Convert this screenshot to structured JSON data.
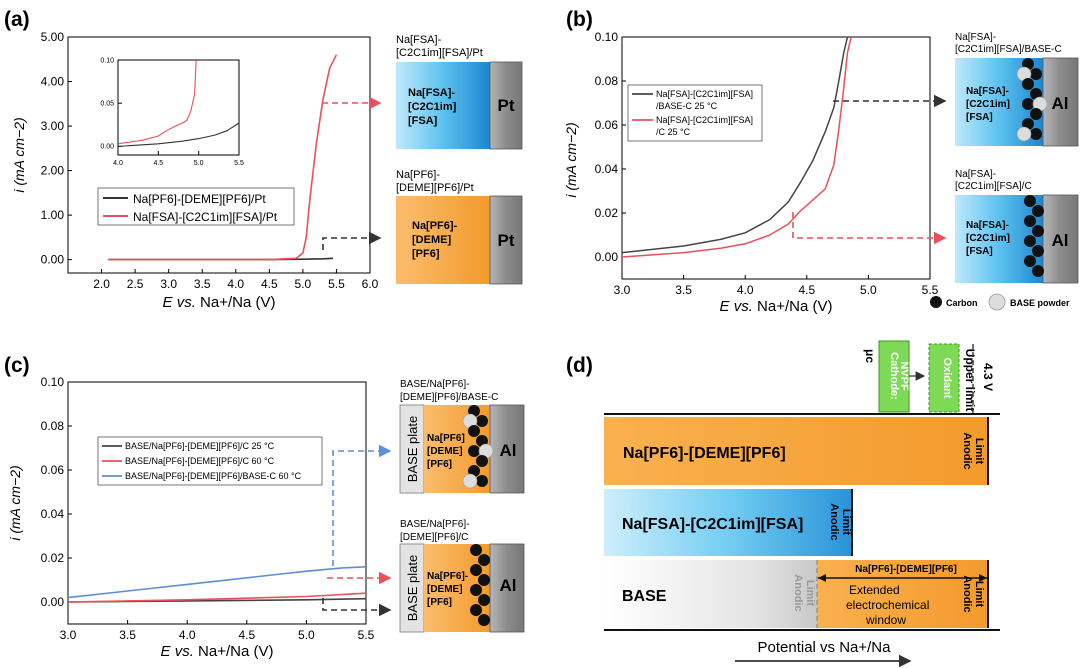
{
  "panel_a": {
    "letter": "(a)",
    "ylabel": "i (mA cm−2)",
    "xlabel_E": "E",
    "xlabel_vs": " vs.",
    "xlabel_rest": " Na+/Na (V)",
    "legend": [
      "Na[PF6]-[DEME][PF6]/Pt",
      "Na[FSA]-[C2C1im][FSA]/Pt"
    ],
    "cell_top_title": [
      "Na[FSA]-",
      "[C2C1im][FSA]/Pt"
    ],
    "cell_top_text": [
      "Na[FSA]-",
      "[C2C1im]",
      "[FSA]"
    ],
    "cell_top_metal": "Pt",
    "cell_bottom_title": [
      "Na[PF6]-",
      "[DEME][PF6]/Pt"
    ],
    "cell_bottom_text": [
      "Na[PF6]-",
      "[DEME]",
      "[PF6]"
    ],
    "cell_bottom_metal": "Pt"
  },
  "panel_b": {
    "letter": "(b)",
    "ylabel": "i (mA cm−2)",
    "xlabel_E": "E",
    "xlabel_vs": " vs.",
    "xlabel_rest": " Na+/Na (V)",
    "legend": [
      [
        "Na[FSA]-[C2C1im][FSA]",
        "/BASE-C 25 °C"
      ],
      [
        "Na[FSA]-[C2C1im][FSA]",
        "/C 25 °C"
      ]
    ],
    "cell_top_title": [
      "Na[FSA]-",
      "[C2C1im][FSA]/BASE-C"
    ],
    "cell_top_text": [
      "Na[FSA]-",
      "[C2C1im]",
      "[FSA]"
    ],
    "cell_top_metal": "Al",
    "cell_bottom_title": [
      "Na[FSA]-",
      "[C2C1im][FSA]/C"
    ],
    "cell_bottom_text": [
      "Na[FSA]-",
      "[C2C1im]",
      "[FSA]"
    ],
    "cell_bottom_metal": "Al",
    "key_carbon": "Carbon",
    "key_base": "BASE powder"
  },
  "panel_c": {
    "letter": "(c)",
    "ylabel": "i (mA cm−2)",
    "xlabel_E": "E",
    "xlabel_vs": " vs.",
    "xlabel_rest": " Na+/Na (V)",
    "legend": [
      "BASE/Na[PF6]-[DEME][PF6]/C 25 °C",
      "BASE/Na[PF6]-[DEME][PF6]/C 60 °C",
      "BASE/Na[PF6]-[DEME][PF6]/BASE-C 60 °C"
    ],
    "cell_top_title": [
      "BASE/Na[PF6]-",
      "[DEME][PF6]/BASE-C"
    ],
    "cell_top_plate": "BASE plate",
    "cell_top_text": [
      "Na[PF6]",
      "[DEME]",
      "[PF6]"
    ],
    "cell_top_metal": "Al",
    "cell_bottom_title": [
      "BASE/Na[PF6]-",
      "[DEME][PF6]/C"
    ],
    "cell_bottom_plate": "BASE plate",
    "cell_bottom_text": [
      "Na[PF6]-",
      "[DEME]",
      "[PF6]"
    ],
    "cell_bottom_metal": "Al"
  },
  "panel_d": {
    "letter": "(d)",
    "mu": "μc",
    "cathode": [
      "Cathode:",
      "NVPF"
    ],
    "oxidant": "Oxidant",
    "upper_limit": "Upper limit",
    "voltage": "4.3 V",
    "bar1": "Na[PF6]-[DEME][PF6]",
    "bar1_limit": [
      "Anodic",
      "Limit"
    ],
    "bar2": "Na[FSA]-[C2C1im][FSA]",
    "bar2_limit": [
      "Anodic",
      "Limit"
    ],
    "bar3": "BASE",
    "bar3_limit_grey": [
      "Anodic",
      "Limit"
    ],
    "bar3_window_title": "Na[PF6]-[DEME][PF6]",
    "bar3_window_text": [
      "Extended",
      "electrochemical",
      "window"
    ],
    "bar3_limit": [
      "Anodic",
      "Limit"
    ],
    "axis_label": "Potential vs Na+/Na"
  },
  "chart_data": [
    {
      "panel": "a",
      "type": "line",
      "xlim": [
        1.5,
        6.0
      ],
      "ylim": [
        -0.3,
        5.0
      ],
      "xticks": [
        "2.0",
        "2.5",
        "3.0",
        "3.5",
        "4.0",
        "4.5",
        "5.0",
        "5.5",
        "6.0"
      ],
      "yticks": [
        "0.00",
        "1.00",
        "2.00",
        "3.00",
        "4.00",
        "5.00"
      ],
      "series": [
        {
          "name": "Na[PF6]-[DEME][PF6]/Pt",
          "color": "#333333",
          "x": [
            2.1,
            3.0,
            4.0,
            4.5,
            5.0,
            5.3,
            5.45
          ],
          "y": [
            0.0,
            0.0,
            0.0,
            0.0,
            0.01,
            0.02,
            0.03
          ]
        },
        {
          "name": "Na[FSA]-[C2C1im][FSA]/Pt",
          "color": "#e8505b",
          "x": [
            2.1,
            3.0,
            4.0,
            4.5,
            4.9,
            5.0,
            5.05,
            5.1,
            5.2,
            5.3,
            5.4,
            5.5
          ],
          "y": [
            0.0,
            0.0,
            0.0,
            0.0,
            0.03,
            0.15,
            0.5,
            1.3,
            2.6,
            3.6,
            4.3,
            4.6
          ]
        }
      ],
      "inset": {
        "xlim": [
          4.0,
          5.5
        ],
        "ylim": [
          -0.01,
          0.1
        ],
        "xticks": [
          "4.0",
          "4.5",
          "5.0",
          "5.5"
        ],
        "yticks": [
          "0.00",
          "0.05",
          "0.10"
        ],
        "series": [
          {
            "color": "#333333",
            "x": [
              4.0,
              4.5,
              4.8,
              5.0,
              5.2,
              5.35,
              5.5
            ],
            "y": [
              0.0,
              0.003,
              0.006,
              0.009,
              0.013,
              0.018,
              0.027
            ]
          },
          {
            "color": "#e8505b",
            "x": [
              4.0,
              4.3,
              4.5,
              4.6,
              4.7,
              4.8,
              4.85,
              4.9,
              4.95,
              4.97
            ],
            "y": [
              0.003,
              0.007,
              0.012,
              0.018,
              0.023,
              0.027,
              0.03,
              0.04,
              0.06,
              0.1
            ]
          }
        ]
      }
    },
    {
      "panel": "b",
      "type": "line",
      "xlim": [
        3.0,
        5.5
      ],
      "ylim": [
        -0.01,
        0.1
      ],
      "xticks": [
        "3.0",
        "3.5",
        "4.0",
        "4.5",
        "5.0",
        "5.5"
      ],
      "yticks": [
        "0.00",
        "0.02",
        "0.04",
        "0.06",
        "0.08",
        "0.10"
      ],
      "series": [
        {
          "name": "Na[FSA]-[C2C1im][FSA]/BASE-C 25 °C",
          "color": "#444444",
          "x": [
            3.0,
            3.5,
            3.8,
            4.0,
            4.2,
            4.35,
            4.45,
            4.55,
            4.65,
            4.72,
            4.76,
            4.8,
            4.83
          ],
          "y": [
            0.002,
            0.005,
            0.008,
            0.011,
            0.017,
            0.025,
            0.034,
            0.044,
            0.057,
            0.068,
            0.08,
            0.093,
            0.1
          ]
        },
        {
          "name": "Na[FSA]-[C2C1im][FSA]/C 25 °C",
          "color": "#e8505b",
          "x": [
            3.0,
            3.5,
            3.8,
            4.0,
            4.2,
            4.35,
            4.45,
            4.55,
            4.65,
            4.72,
            4.76,
            4.8,
            4.83,
            4.86
          ],
          "y": [
            0.0,
            0.002,
            0.004,
            0.006,
            0.01,
            0.015,
            0.021,
            0.026,
            0.031,
            0.042,
            0.058,
            0.077,
            0.093,
            0.1
          ]
        }
      ]
    },
    {
      "panel": "c",
      "type": "line",
      "xlim": [
        3.0,
        5.5
      ],
      "ylim": [
        -0.01,
        0.1
      ],
      "xticks": [
        "3.0",
        "3.5",
        "4.0",
        "4.5",
        "5.0",
        "5.5"
      ],
      "yticks": [
        "0.00",
        "0.02",
        "0.04",
        "0.06",
        "0.08",
        "0.10"
      ],
      "series": [
        {
          "name": "BASE/Na[PF6]-[DEME][PF6]/C 25 °C",
          "color": "#444444",
          "x": [
            3.0,
            4.0,
            5.0,
            5.5
          ],
          "y": [
            0.0,
            0.0005,
            0.001,
            0.0015
          ]
        },
        {
          "name": "BASE/Na[PF6]-[DEME][PF6]/C 60 °C",
          "color": "#e8505b",
          "x": [
            3.0,
            4.0,
            5.0,
            5.5
          ],
          "y": [
            0.0,
            0.001,
            0.0025,
            0.004
          ]
        },
        {
          "name": "BASE/Na[PF6]-[DEME][PF6]/BASE-C 60 °C",
          "color": "#5b8fd9",
          "x": [
            3.0,
            3.5,
            4.0,
            4.5,
            5.0,
            5.3,
            5.5
          ],
          "y": [
            0.002,
            0.005,
            0.008,
            0.011,
            0.014,
            0.0155,
            0.016
          ]
        }
      ]
    }
  ]
}
